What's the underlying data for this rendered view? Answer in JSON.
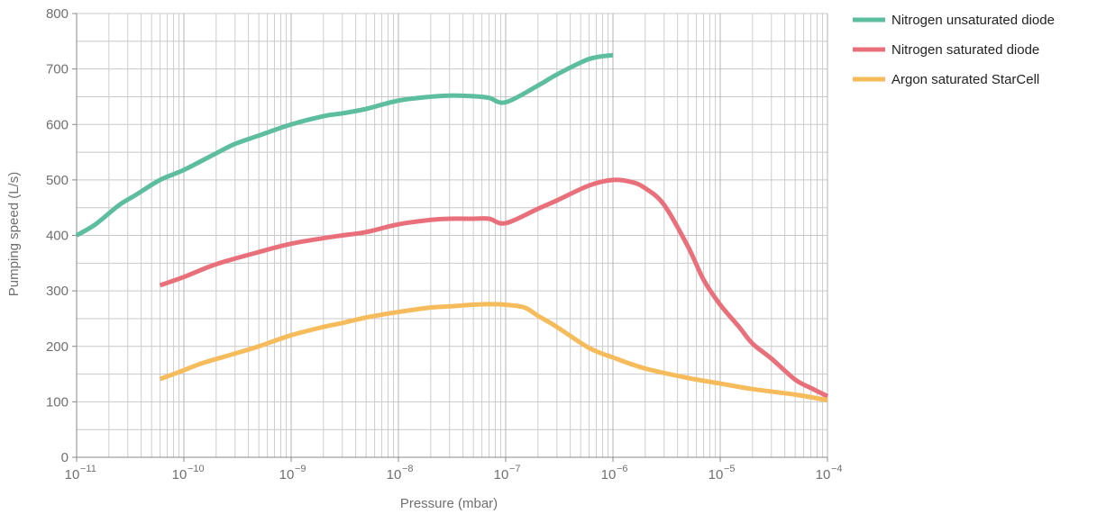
{
  "chart_data": {
    "type": "line",
    "title": "",
    "xlabel": "Pressure (mbar)",
    "ylabel": "Pumping speed (L/s)",
    "x_scale": "log",
    "xlim": [
      1e-11,
      0.0001
    ],
    "ylim": [
      0,
      800
    ],
    "grid": true,
    "legend": "top-right, outside plot",
    "x_tick_labels": [
      {
        "base": "10",
        "exp": "−11"
      },
      {
        "base": "10",
        "exp": "−10"
      },
      {
        "base": "10",
        "exp": "−9"
      },
      {
        "base": "10",
        "exp": "−8"
      },
      {
        "base": "10",
        "exp": "−7"
      },
      {
        "base": "10",
        "exp": "−6"
      },
      {
        "base": "10",
        "exp": "−5"
      },
      {
        "base": "10",
        "exp": "−4"
      }
    ],
    "y_ticks": [
      "0",
      "100",
      "200",
      "300",
      "400",
      "500",
      "600",
      "700",
      "800"
    ],
    "series": [
      {
        "name": "Nitrogen unsaturated diode",
        "color": "#5dbd9f",
        "x": [
          1e-11,
          1.5e-11,
          2.5e-11,
          3.5e-11,
          6e-11,
          1e-10,
          2e-10,
          3e-10,
          5e-10,
          1e-09,
          2e-09,
          3e-09,
          5e-09,
          1e-08,
          2e-08,
          3e-08,
          5e-08,
          7e-08,
          1e-07,
          2e-07,
          3e-07,
          6e-07,
          1e-06
        ],
        "y": [
          400,
          420,
          455,
          472,
          500,
          518,
          548,
          565,
          580,
          600,
          615,
          620,
          628,
          643,
          650,
          652,
          651,
          648,
          640,
          670,
          690,
          718,
          725
        ]
      },
      {
        "name": "Nitrogen saturated diode",
        "color": "#e9707b",
        "x": [
          6e-11,
          1e-10,
          2e-10,
          5e-10,
          1e-09,
          2e-09,
          3e-09,
          5e-09,
          1e-08,
          2e-08,
          3e-08,
          5e-08,
          7e-08,
          1e-07,
          2e-07,
          3e-07,
          6e-07,
          1e-06,
          1.5e-06,
          2e-06,
          3e-06,
          5e-06,
          7e-06,
          1e-05,
          1.5e-05,
          2e-05,
          3e-05,
          5e-05,
          7e-05,
          0.0001
        ],
        "y": [
          310,
          325,
          348,
          370,
          385,
          395,
          400,
          406,
          420,
          428,
          430,
          430,
          430,
          422,
          448,
          463,
          490,
          500,
          496,
          485,
          455,
          380,
          320,
          275,
          235,
          205,
          178,
          140,
          125,
          110
        ]
      },
      {
        "name": "Argon saturated StarCell",
        "color": "#f6bb5b",
        "x": [
          6e-11,
          1e-10,
          1.5e-10,
          3e-10,
          5e-10,
          1e-09,
          2e-09,
          3e-09,
          5e-09,
          1e-08,
          2e-08,
          3e-08,
          5e-08,
          7e-08,
          1e-07,
          1.5e-07,
          2e-07,
          3e-07,
          6e-07,
          1e-06,
          2e-06,
          5e-06,
          1e-05,
          2e-05,
          5e-05,
          0.0001
        ],
        "y": [
          141,
          157,
          170,
          187,
          200,
          220,
          235,
          242,
          252,
          262,
          270,
          272,
          275,
          276,
          275,
          270,
          255,
          235,
          197,
          180,
          160,
          143,
          133,
          123,
          113,
          103
        ]
      }
    ]
  }
}
